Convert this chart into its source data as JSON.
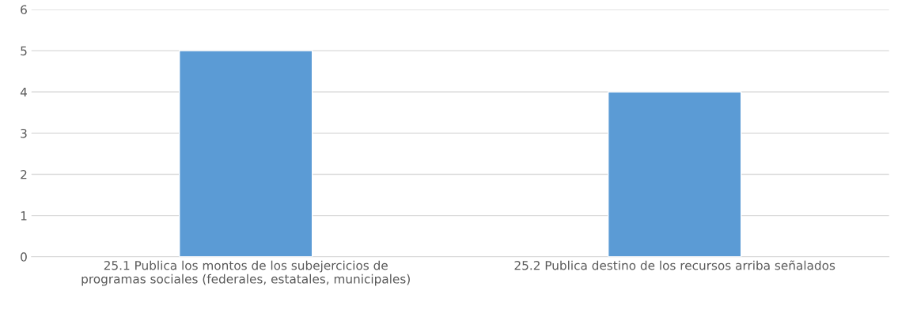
{
  "chart_data": {
    "type": "bar",
    "categories": [
      "25.1 Publica los montos de los subejercicios de\nprogramas sociales (federales, estatales, municipales)",
      "25.2 Publica destino de los recursos arriba señalados"
    ],
    "values": [
      5,
      4
    ],
    "color": "#5b9bd5",
    "ylim": [
      0,
      6
    ],
    "yticks": [
      0,
      1,
      2,
      3,
      4,
      5,
      6
    ],
    "grid": "y",
    "legend": false
  }
}
